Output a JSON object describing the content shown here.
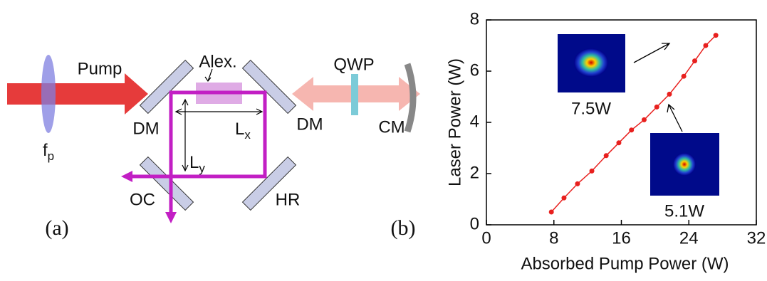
{
  "diagram": {
    "panel_label": "(a)",
    "labels": {
      "pump": "Pump",
      "lens": {
        "main": "f",
        "sub": "p"
      },
      "crystal": "Alex.",
      "dm_left": "DM",
      "dm_right": "DM",
      "qwp": "QWP",
      "cm": "CM",
      "oc": "OC",
      "hr": "HR",
      "lx": {
        "main": "L",
        "sub": "x"
      },
      "ly": {
        "main": "L",
        "sub": "y"
      }
    }
  },
  "chart_data": {
    "type": "line",
    "panel_label": "(b)",
    "x_label": "Absorbed Pump Power (W)",
    "y_label": "Laser Power (W)",
    "x": [
      7.7,
      9.2,
      10.8,
      12.5,
      14.2,
      15.7,
      17.2,
      18.7,
      20.2,
      21.7,
      23.4,
      24.7,
      26.0,
      27.2
    ],
    "series": [
      {
        "color": "#e8201e",
        "values": [
          0.5,
          1.05,
          1.6,
          2.1,
          2.7,
          3.2,
          3.7,
          4.1,
          4.6,
          5.1,
          5.8,
          6.4,
          7.0,
          7.4
        ]
      }
    ],
    "xlim": [
      0,
      32
    ],
    "xticks": [
      0,
      8,
      16,
      24,
      32
    ],
    "ylim": [
      0,
      8
    ],
    "yticks": [
      0,
      2,
      4,
      6,
      8
    ],
    "annotations": [
      "7.5W",
      "5.1W"
    ]
  }
}
